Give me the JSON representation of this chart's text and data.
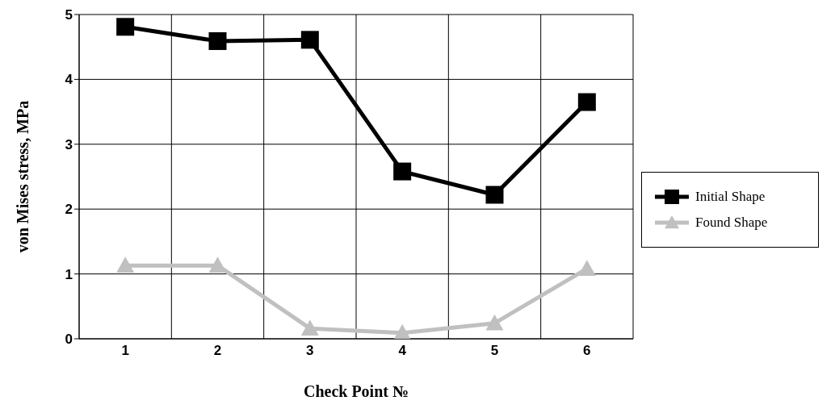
{
  "chart_data": {
    "type": "line",
    "xlabel": "Check Point №",
    "ylabel": "von Mises stress, MPa",
    "categories": [
      "1",
      "2",
      "3",
      "4",
      "5",
      "6"
    ],
    "ylim": [
      0,
      5
    ],
    "yticks": [
      0,
      1,
      2,
      3,
      4,
      5
    ],
    "grid": true,
    "legend": "right",
    "series": [
      {
        "name": "Initial Shape",
        "color": "#000000",
        "marker": "square",
        "values": [
          4.81,
          4.59,
          4.61,
          2.58,
          2.22,
          3.65
        ]
      },
      {
        "name": "Found Shape",
        "color": "#c0c0c0",
        "marker": "triangle",
        "values": [
          1.13,
          1.13,
          0.16,
          0.09,
          0.24,
          1.08
        ]
      }
    ]
  }
}
